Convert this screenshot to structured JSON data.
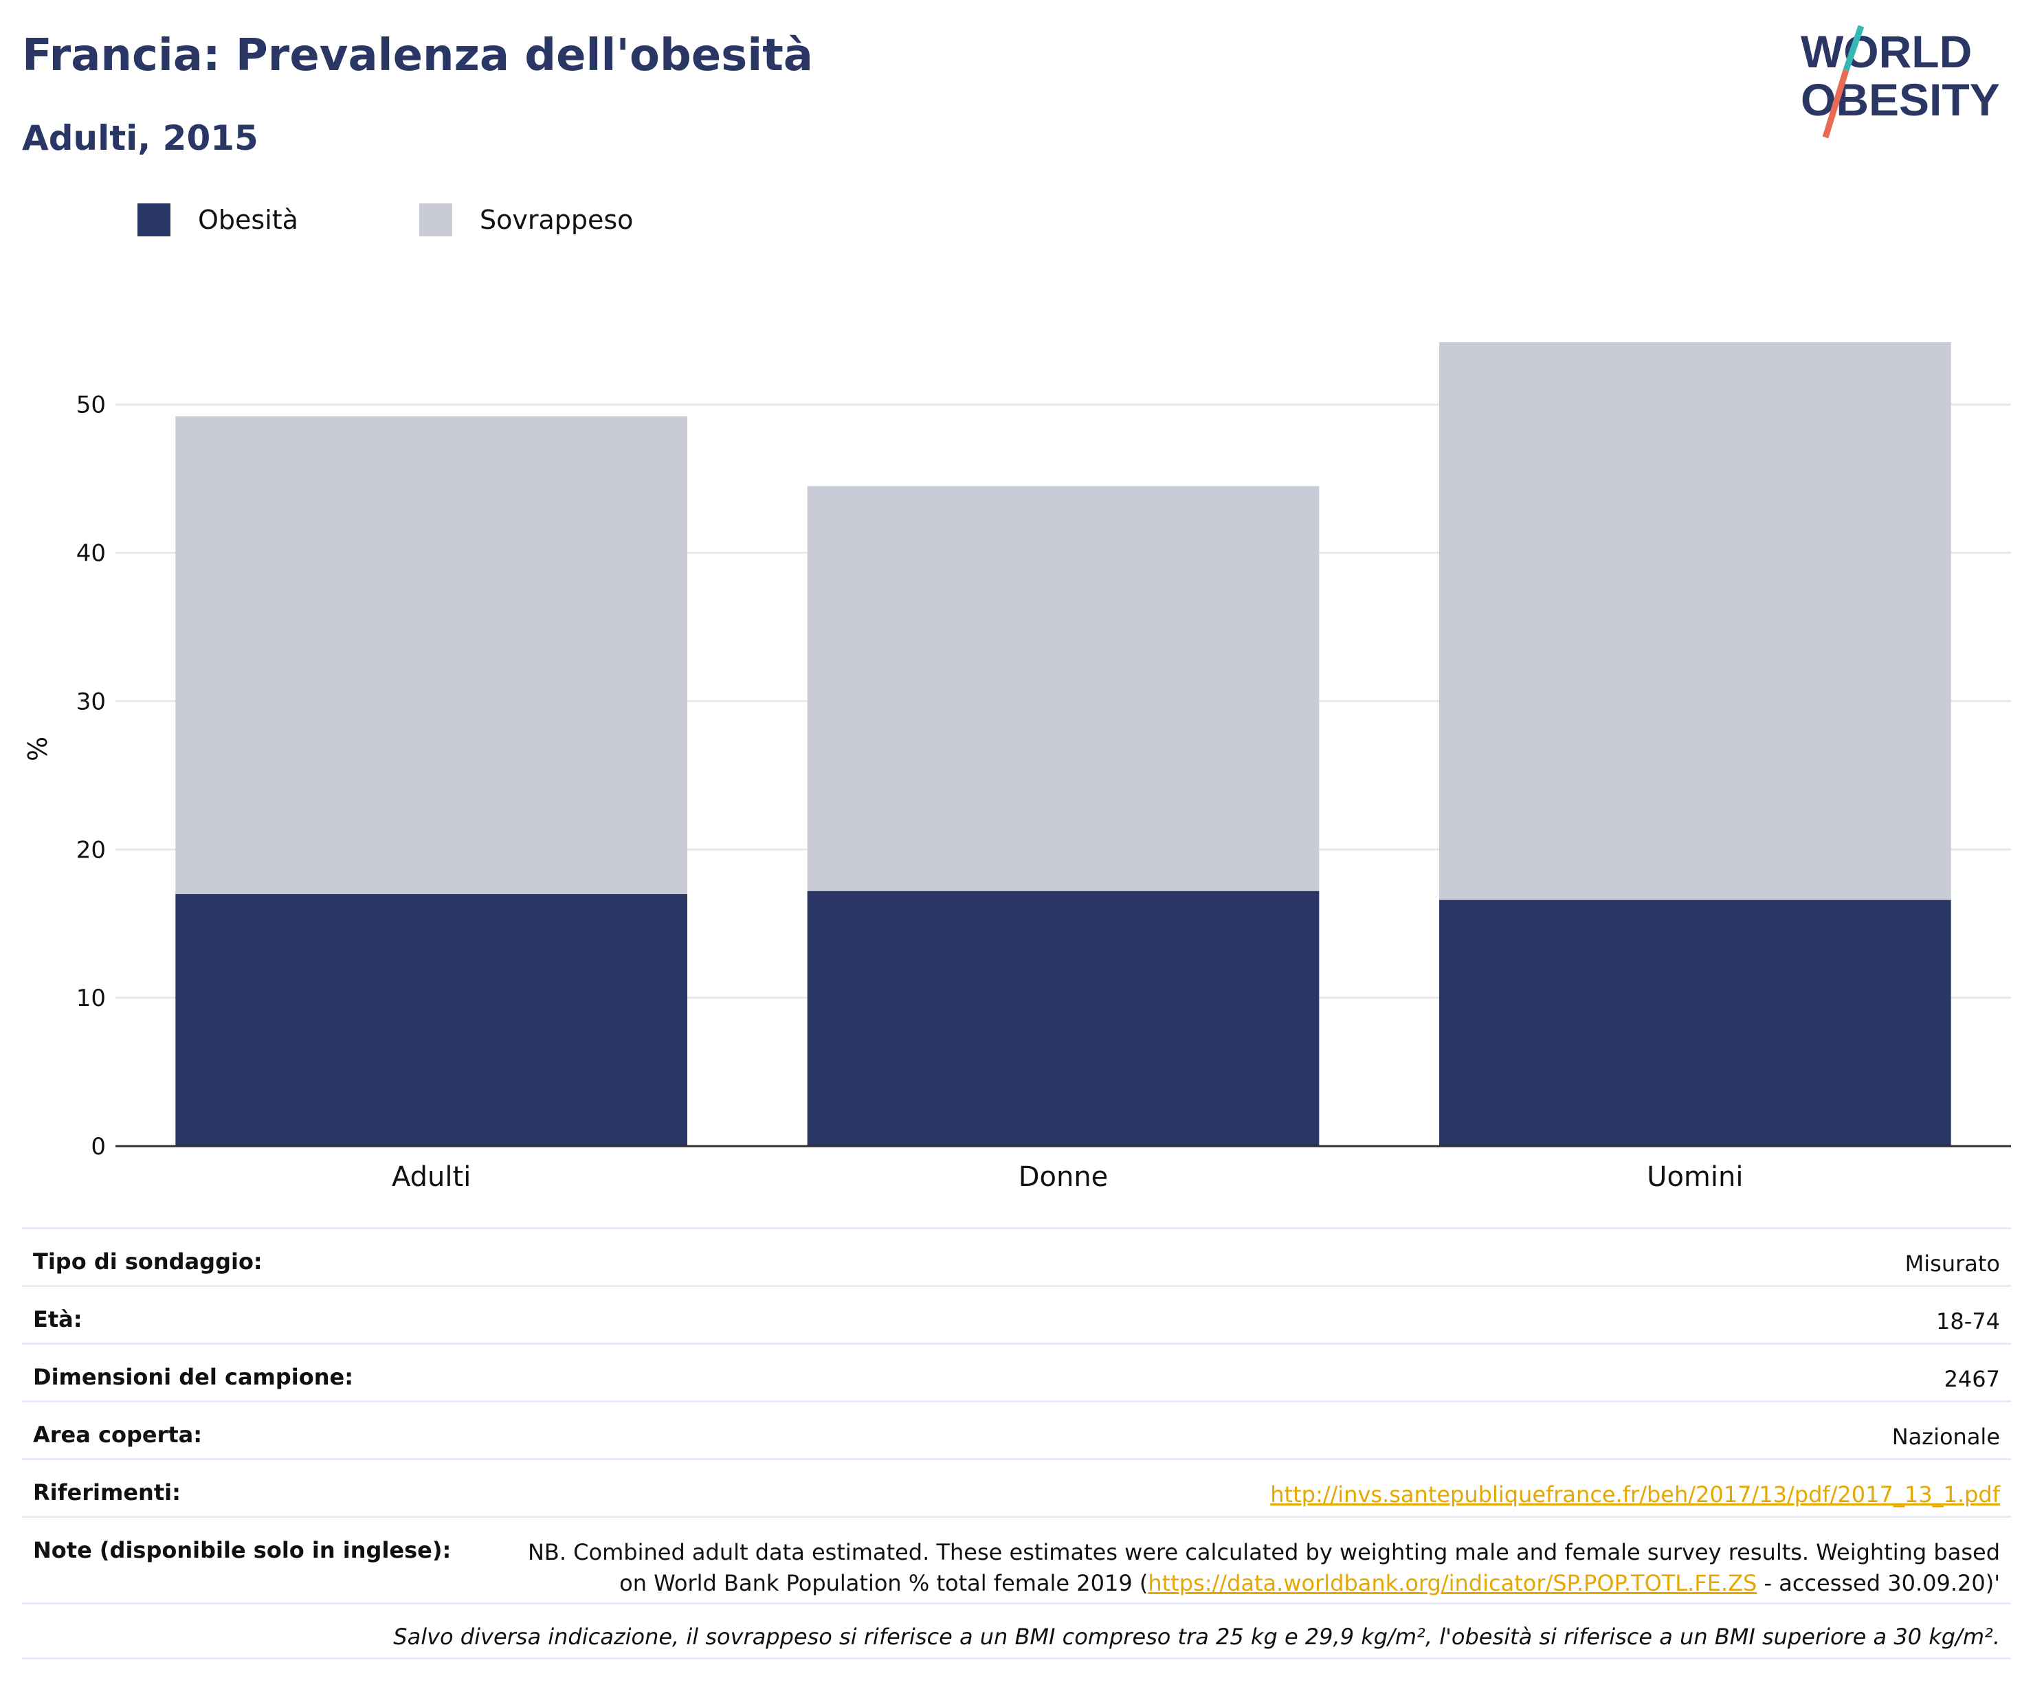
{
  "header": {
    "title": "Francia: Prevalenza dell'obesità",
    "subtitle": "Adulti, 2015"
  },
  "logo": {
    "line1": "WORLD",
    "line2": "OBESITY"
  },
  "legend": {
    "items": [
      {
        "label": "Obesità",
        "color": "#2a3663"
      },
      {
        "label": "Sovrappeso",
        "color": "#c9cbd7"
      }
    ]
  },
  "chart_data": {
    "type": "bar",
    "stacked": true,
    "categories": [
      "Adulti",
      "Donne",
      "Uomini"
    ],
    "series": [
      {
        "name": "Obesità",
        "color": "#2a3663",
        "values": [
          17.0,
          17.2,
          16.6
        ]
      },
      {
        "name": "Sovrappeso",
        "color": "#c9cbd7",
        "values": [
          32.2,
          27.3,
          37.6
        ]
      }
    ],
    "xlabel": "",
    "ylabel": "%",
    "ylim": [
      0,
      58
    ],
    "yticks": [
      0,
      10,
      20,
      30,
      40,
      50
    ],
    "grid": true,
    "legend_position": "top-left"
  },
  "info": {
    "rows": [
      {
        "key": "Tipo di sondaggio:",
        "value": "Misurato"
      },
      {
        "key": "Età:",
        "value": "18-74"
      },
      {
        "key": "Dimensioni del campione:",
        "value": "2467"
      },
      {
        "key": "Area coperta:",
        "value": "Nazionale"
      },
      {
        "key": "Riferimenti:",
        "link": "http://invs.santepubliquefrance.fr/beh/2017/13/pdf/2017_13_1.pdf"
      }
    ],
    "note": {
      "key": "Note (disponibile solo in inglese):",
      "line1": "NB. Combined adult data estimated. These estimates were calculated by weighting male and female survey results. Weighting based",
      "line2_before": "on World Bank Population % total female 2019 (",
      "line2_link": "https://data.worldbank.org/indicator/SP.POP.TOTL.FE.ZS",
      "line2_after": " - accessed 30.09.20)'"
    },
    "footnote": "Salvo diversa indicazione, il sovrappeso si riferisce a un BMI compreso tra 25 kg e 29,9 kg/m², l'obesità si riferisce a un BMI superiore a 30 kg/m²."
  }
}
